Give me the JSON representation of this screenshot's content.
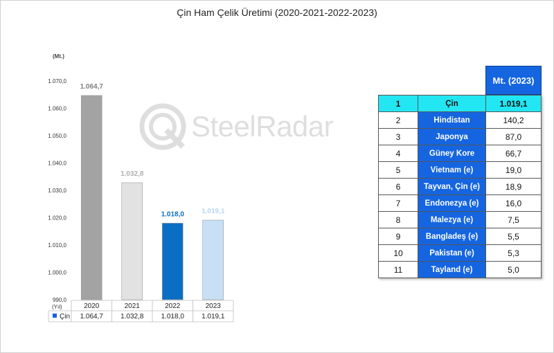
{
  "title": "Çin Ham Çelik Üretimi (2020-2021-2022-2023)",
  "unit_label": "(Mt.)",
  "x_unit_label": "(Yıl)",
  "watermark": {
    "brand_a": "Steel",
    "brand_b": "Radar"
  },
  "chart_data": {
    "type": "bar",
    "title": "Çin Ham Çelik Üretimi (2020-2021-2022-2023)",
    "categories": [
      "2020",
      "2021",
      "2022",
      "2023"
    ],
    "series": [
      {
        "name": "Çin",
        "values": [
          1064.7,
          1032.8,
          1018.0,
          1019.1
        ]
      }
    ],
    "value_labels": [
      "1.064,7",
      "1.032,8",
      "1.018,0",
      "1.019,1"
    ],
    "bar_colors": [
      "#a3a3a3",
      "#e2e2e2",
      "#0a6ec4",
      "#c8e0f6"
    ],
    "label_colors": [
      "#808080",
      "#b0b0b0",
      "#0a6ec4",
      "#b8d6f2"
    ],
    "ylim": [
      990,
      1070
    ],
    "yticks": [
      990,
      1000,
      1010,
      1020,
      1030,
      1040,
      1050,
      1060,
      1070
    ],
    "ytick_labels": [
      "990,0",
      "1.000,0",
      "1.010,0",
      "1.020,0",
      "1.030,0",
      "1.040,0",
      "1.050,0",
      "1.060,0",
      "1.070,0"
    ],
    "ylabel": "(Mt.)",
    "xlabel": "(Yıl)",
    "grid": false,
    "legend": "data-table-below",
    "data_table": {
      "series_name": "Çin",
      "values": [
        "1.064,7",
        "1.032,8",
        "1.018,0",
        "1.019,1"
      ],
      "legend_color": "#1565e0"
    }
  },
  "ranking_table": {
    "header": "Mt. (2023)",
    "rows": [
      {
        "rank": "1",
        "country": "Çin",
        "value": "1.019,1"
      },
      {
        "rank": "2",
        "country": "Hindistan",
        "value": "140,2"
      },
      {
        "rank": "3",
        "country": "Japonya",
        "value": "87,0"
      },
      {
        "rank": "4",
        "country": "Güney Kore",
        "value": "66,7"
      },
      {
        "rank": "5",
        "country": "Vietnam (e)",
        "value": "19,0"
      },
      {
        "rank": "6",
        "country": "Tayvan, Çin (e)",
        "value": "18,9"
      },
      {
        "rank": "7",
        "country": "Endonezya (e)",
        "value": "16,0"
      },
      {
        "rank": "8",
        "country": "Malezya (e)",
        "value": "7,5"
      },
      {
        "rank": "9",
        "country": "Bangladeş (e)",
        "value": "5,5"
      },
      {
        "rank": "10",
        "country": "Pakistan (e)",
        "value": "5,3"
      },
      {
        "rank": "11",
        "country": "Tayland (e)",
        "value": "5,0"
      }
    ]
  }
}
